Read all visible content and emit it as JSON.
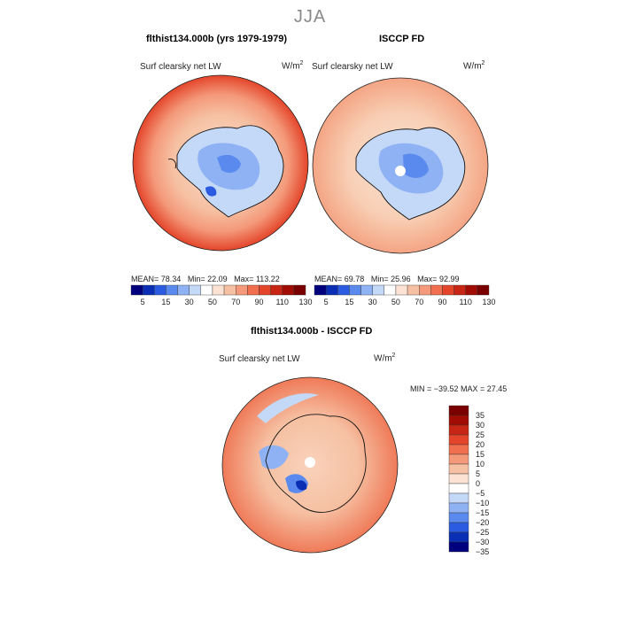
{
  "header": {
    "season": "JJA"
  },
  "panels": [
    {
      "title": "flthist134.000b (yrs 1979-1979)",
      "variable": "Surf clearsky net LW",
      "units": "W/m",
      "units_exp": "2",
      "stats": {
        "mean_label": "MEAN=",
        "mean": "78.34",
        "min_label": "Min=",
        "min": "22.09",
        "max_label": "Max=",
        "max": "113.22"
      }
    },
    {
      "title": "ISCCP FD",
      "variable": "Surf clearsky net LW",
      "units": "W/m",
      "units_exp": "2",
      "stats": {
        "mean_label": "MEAN=",
        "mean": "69.78",
        "min_label": "Min=",
        "min": "25.96",
        "max_label": "Max=",
        "max": "92.99"
      }
    }
  ],
  "diff_panel": {
    "title": "flthist134.000b - ISCCP FD",
    "variable": "Surf clearsky net LW",
    "units": "W/m",
    "units_exp": "2",
    "minmax": "MIN = −39.52 MAX =  27.45"
  },
  "colorbar_top": {
    "tick_labels": [
      "5",
      "15",
      "30",
      "50",
      "70",
      "90",
      "110",
      "130"
    ],
    "colors": [
      "#00007f",
      "#0a2fb4",
      "#2a5be0",
      "#5a8aee",
      "#8fb2f4",
      "#c4d8f8",
      "#ffffff",
      "#fbe2d2",
      "#f6c0a2",
      "#f4997a",
      "#ef6f4f",
      "#e4452a",
      "#c82615",
      "#a10d04",
      "#7a0000"
    ]
  },
  "colorbar_diff": {
    "tick_labels": [
      "35",
      "30",
      "25",
      "20",
      "15",
      "10",
      "5",
      "0",
      "−5",
      "−10",
      "−15",
      "−20",
      "−25",
      "−30",
      "−35"
    ],
    "colors": [
      "#7a0000",
      "#a10d04",
      "#c82615",
      "#e4452a",
      "#ef6f4f",
      "#f4997a",
      "#f6c0a2",
      "#fbe2d2",
      "#ffffff",
      "#c4d8f8",
      "#8fb2f4",
      "#5a8aee",
      "#2a5be0",
      "#0a2fb4",
      "#00007f"
    ]
  },
  "chart_data": [
    {
      "type": "heatmap",
      "title": "flthist134.000b (yrs 1979-1979)",
      "field": "Surf clearsky net LW",
      "units": "W/m2",
      "projection": "south polar stereographic",
      "levels": [
        5,
        15,
        30,
        50,
        70,
        90,
        110,
        130
      ],
      "mean": 78.34,
      "min": 22.09,
      "max": 113.22
    },
    {
      "type": "heatmap",
      "title": "ISCCP FD",
      "field": "Surf clearsky net LW",
      "units": "W/m2",
      "projection": "south polar stereographic",
      "levels": [
        5,
        15,
        30,
        50,
        70,
        90,
        110,
        130
      ],
      "mean": 69.78,
      "min": 25.96,
      "max": 92.99
    },
    {
      "type": "heatmap",
      "title": "flthist134.000b - ISCCP FD",
      "field": "Surf clearsky net LW",
      "units": "W/m2",
      "projection": "south polar stereographic",
      "levels": [
        -35,
        -30,
        -25,
        -20,
        -15,
        -10,
        -5,
        0,
        5,
        10,
        15,
        20,
        25,
        30,
        35
      ],
      "min": -39.52,
      "max": 27.45
    }
  ]
}
